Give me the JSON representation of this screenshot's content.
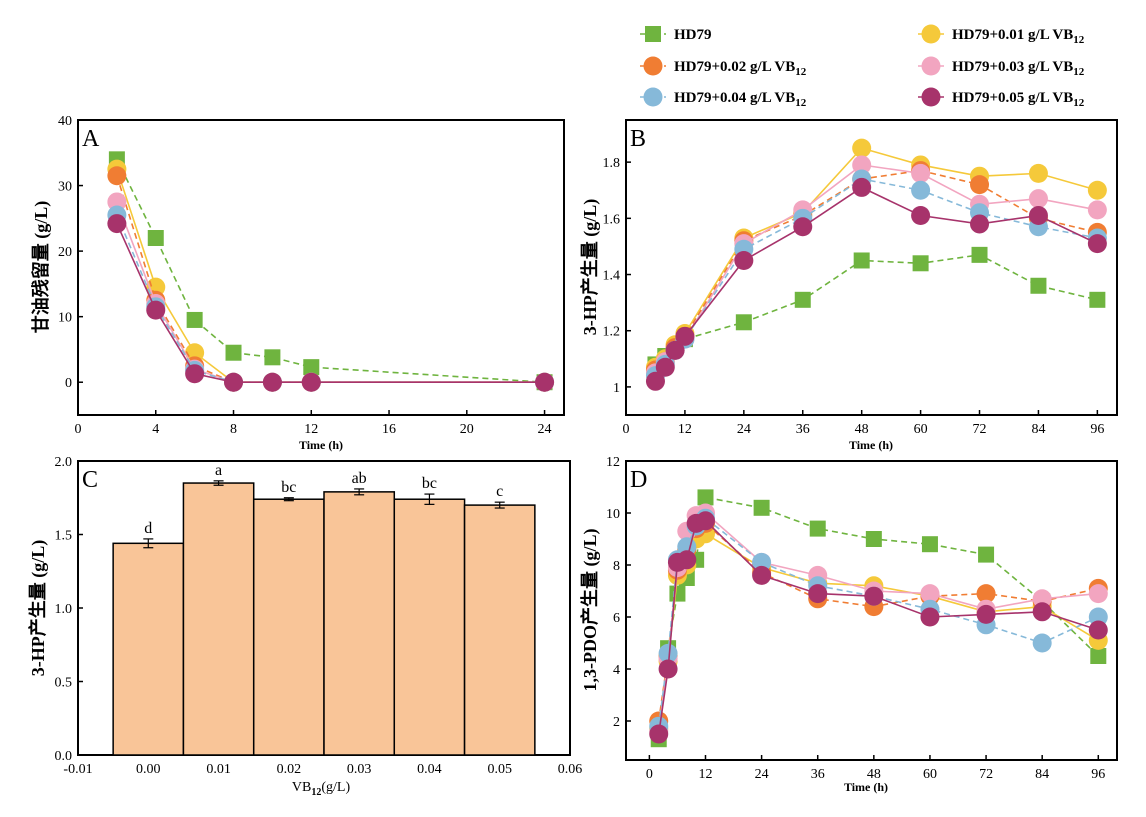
{
  "legend": [
    {
      "label": "HD79",
      "sub": "",
      "color": "#6fb43f",
      "marker": "square",
      "dash": true
    },
    {
      "label": "HD79+0.01 g/L VB",
      "sub": "12",
      "color": "#f5c93a",
      "marker": "circle",
      "dash": false
    },
    {
      "label": "HD79+0.02 g/L VB",
      "sub": "12",
      "color": "#f07d33",
      "marker": "circle",
      "dash": true
    },
    {
      "label": "HD79+0.03 g/L VB",
      "sub": "12",
      "color": "#f2a5c0",
      "marker": "circle",
      "dash": false
    },
    {
      "label": "HD79+0.04 g/L VB",
      "sub": "12",
      "color": "#86b9d9",
      "marker": "circle",
      "dash": true
    },
    {
      "label": "HD79+0.05 g/L VB",
      "sub": "12",
      "color": "#a7336b",
      "marker": "circle",
      "dash": false
    }
  ],
  "chart_data": [
    {
      "panel": "A",
      "type": "line",
      "xlabel": "Time (h)",
      "ylabel": "甘油残留量 (g/L)",
      "xlim": [
        0,
        25
      ],
      "ylim": [
        -5,
        40
      ],
      "xticks": [
        0,
        4,
        8,
        12,
        16,
        20,
        24
      ],
      "yticks": [
        0,
        10,
        20,
        30,
        40
      ],
      "series": [
        {
          "name": "HD79",
          "x": [
            2,
            4,
            6,
            8,
            10,
            12,
            24
          ],
          "y": [
            34,
            22,
            9.5,
            4.5,
            3.8,
            2.3,
            0
          ]
        },
        {
          "name": "HD79+0.01 g/L VB12",
          "x": [
            2,
            4,
            6,
            8,
            10,
            12,
            24
          ],
          "y": [
            32.5,
            14.5,
            4.5,
            0,
            0,
            0,
            0
          ]
        },
        {
          "name": "HD79+0.02 g/L VB12",
          "x": [
            2,
            4,
            6,
            8,
            10,
            12,
            24
          ],
          "y": [
            31.5,
            12.5,
            2.5,
            0,
            0,
            0,
            0
          ]
        },
        {
          "name": "HD79+0.03 g/L VB12",
          "x": [
            2,
            4,
            6,
            8,
            10,
            12,
            24
          ],
          "y": [
            27.5,
            12,
            2,
            0,
            0,
            0,
            0
          ]
        },
        {
          "name": "HD79+0.04 g/L VB12",
          "x": [
            2,
            4,
            6,
            8,
            10,
            12,
            24
          ],
          "y": [
            25.5,
            11.5,
            1.8,
            0,
            0,
            0,
            0
          ]
        },
        {
          "name": "HD79+0.05 g/L VB12",
          "x": [
            2,
            4,
            6,
            8,
            10,
            12,
            24
          ],
          "y": [
            24.2,
            11,
            1.3,
            0,
            0,
            0,
            0
          ]
        }
      ]
    },
    {
      "panel": "B",
      "type": "line",
      "xlabel": "Time (h)",
      "ylabel": "3-HP产生量 (g/L)",
      "xlim": [
        0,
        100
      ],
      "ylim": [
        0.9,
        1.95
      ],
      "xticks": [
        0,
        12,
        24,
        36,
        48,
        60,
        72,
        84,
        96
      ],
      "yticks": [
        1.0,
        1.2,
        1.4,
        1.6,
        1.8
      ],
      "series": [
        {
          "name": "HD79",
          "x": [
            6,
            8,
            10,
            12,
            24,
            36,
            48,
            60,
            72,
            84,
            96
          ],
          "y": [
            1.08,
            1.11,
            1.14,
            1.17,
            1.23,
            1.31,
            1.45,
            1.44,
            1.47,
            1.36,
            1.31
          ]
        },
        {
          "name": "HD79+0.01 g/L VB12",
          "x": [
            6,
            8,
            10,
            12,
            24,
            36,
            48,
            60,
            72,
            84,
            96
          ],
          "y": [
            1.07,
            1.1,
            1.15,
            1.19,
            1.53,
            1.62,
            1.85,
            1.79,
            1.75,
            1.76,
            1.7
          ]
        },
        {
          "name": "HD79+0.02 g/L VB12",
          "x": [
            6,
            8,
            10,
            12,
            24,
            36,
            48,
            60,
            72,
            84,
            96
          ],
          "y": [
            1.06,
            1.09,
            1.14,
            1.18,
            1.52,
            1.61,
            1.74,
            1.77,
            1.72,
            1.6,
            1.55
          ]
        },
        {
          "name": "HD79+0.03 g/L VB12",
          "x": [
            6,
            8,
            10,
            12,
            24,
            36,
            48,
            60,
            72,
            84,
            96
          ],
          "y": [
            1.05,
            1.09,
            1.13,
            1.17,
            1.51,
            1.63,
            1.79,
            1.76,
            1.65,
            1.67,
            1.63
          ]
        },
        {
          "name": "HD79+0.04 g/L VB12",
          "x": [
            6,
            8,
            10,
            12,
            24,
            36,
            48,
            60,
            72,
            84,
            96
          ],
          "y": [
            1.04,
            1.08,
            1.13,
            1.17,
            1.49,
            1.6,
            1.74,
            1.7,
            1.62,
            1.57,
            1.53
          ]
        },
        {
          "name": "HD79+0.05 g/L VB12",
          "x": [
            6,
            8,
            10,
            12,
            24,
            36,
            48,
            60,
            72,
            84,
            96
          ],
          "y": [
            1.02,
            1.07,
            1.13,
            1.18,
            1.45,
            1.57,
            1.71,
            1.61,
            1.58,
            1.61,
            1.51
          ]
        }
      ]
    },
    {
      "panel": "C",
      "type": "bar",
      "xlabel": "VB",
      "xlabel_sub": "12",
      "xlabel_tail": "(g/L)",
      "ylabel": "3-HP产生量 (g/L)",
      "xlim": [
        -0.01,
        0.06
      ],
      "ylim": [
        0,
        2.0
      ],
      "xticks": [
        "-0.01",
        "0.00",
        "0.01",
        "0.02",
        "0.03",
        "0.04",
        "0.05",
        "0.06"
      ],
      "yticks": [
        "0.0",
        "0.5",
        "1.0",
        "1.5",
        "2.0"
      ],
      "categories": [
        0.0,
        0.01,
        0.02,
        0.03,
        0.04,
        0.05
      ],
      "values": [
        1.44,
        1.85,
        1.74,
        1.79,
        1.74,
        1.7
      ],
      "errors": [
        0.03,
        0.015,
        0.01,
        0.02,
        0.035,
        0.02
      ],
      "letters": [
        "d",
        "a",
        "bc",
        "ab",
        "bc",
        "c"
      ],
      "bar_color": "#f9c598"
    },
    {
      "panel": "D",
      "type": "line",
      "xlabel": "Time (h)",
      "ylabel": "1,3-PDO产生量 (g/L)",
      "xlim": [
        -5,
        100
      ],
      "ylim": [
        0.5,
        12
      ],
      "xticks": [
        0,
        12,
        24,
        36,
        48,
        60,
        72,
        84,
        96
      ],
      "yticks": [
        2,
        4,
        6,
        8,
        10,
        12
      ],
      "series": [
        {
          "name": "HD79",
          "x": [
            2,
            4,
            6,
            8,
            10,
            12,
            24,
            36,
            48,
            60,
            72,
            84,
            96
          ],
          "y": [
            1.3,
            4.8,
            6.9,
            7.5,
            8.2,
            10.6,
            10.2,
            9.4,
            9.0,
            8.8,
            8.4,
            6.6,
            4.5
          ]
        },
        {
          "name": "HD79+0.01 g/L VB12",
          "x": [
            2,
            4,
            6,
            8,
            10,
            12,
            24,
            36,
            48,
            60,
            72,
            84,
            96
          ],
          "y": [
            1.7,
            4.3,
            7.6,
            8.0,
            9.0,
            9.2,
            7.9,
            7.3,
            7.2,
            6.8,
            6.2,
            6.4,
            5.1
          ]
        },
        {
          "name": "HD79+0.02 g/L VB12",
          "x": [
            2,
            4,
            6,
            8,
            10,
            12,
            24,
            36,
            48,
            60,
            72,
            84,
            96
          ],
          "y": [
            2.0,
            4.5,
            7.8,
            8.6,
            9.4,
            9.6,
            7.7,
            6.7,
            6.4,
            6.8,
            6.9,
            6.6,
            7.1
          ]
        },
        {
          "name": "HD79+0.03 g/L VB12",
          "x": [
            2,
            4,
            6,
            8,
            10,
            12,
            24,
            36,
            48,
            60,
            72,
            84,
            96
          ],
          "y": [
            1.6,
            4.4,
            7.9,
            9.3,
            9.9,
            10.0,
            8.1,
            7.6,
            7.0,
            6.9,
            6.3,
            6.7,
            6.9
          ]
        },
        {
          "name": "HD79+0.04 g/L VB12",
          "x": [
            2,
            4,
            6,
            8,
            10,
            12,
            24,
            36,
            48,
            60,
            72,
            84,
            96
          ],
          "y": [
            1.8,
            4.6,
            8.2,
            8.7,
            9.5,
            9.8,
            8.1,
            7.2,
            6.8,
            6.3,
            5.7,
            5.0,
            6.0
          ]
        },
        {
          "name": "HD79+0.05 g/L VB12",
          "x": [
            2,
            4,
            6,
            8,
            10,
            12,
            24,
            36,
            48,
            60,
            72,
            84,
            96
          ],
          "y": [
            1.5,
            4.0,
            8.1,
            8.2,
            9.6,
            9.7,
            7.6,
            6.9,
            6.8,
            6.0,
            6.1,
            6.2,
            5.5
          ]
        }
      ]
    }
  ]
}
